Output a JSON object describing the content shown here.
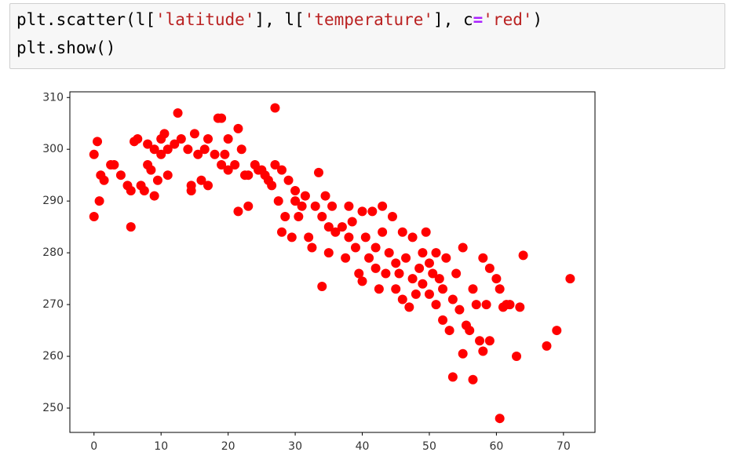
{
  "code": {
    "lines": [
      [
        "plt.scatter(l[",
        "'latitude'",
        "], l[",
        "'temperature'",
        "], c",
        "=",
        "'red'",
        ")"
      ],
      [
        "plt.show()"
      ]
    ]
  },
  "chart_data": {
    "type": "scatter",
    "color": "red",
    "x": [
      0,
      0,
      0.5,
      0.8,
      1,
      1.5,
      2.5,
      3,
      4,
      5,
      5.5,
      5.5,
      6,
      6.5,
      7,
      7.5,
      8,
      8,
      8.5,
      9,
      9,
      9.5,
      10,
      10,
      10.5,
      11,
      11,
      12,
      12.5,
      13,
      14,
      14.5,
      14.5,
      15,
      15.5,
      16,
      16.5,
      17,
      17,
      18,
      18.5,
      19,
      19,
      19.5,
      20,
      20,
      21,
      21.5,
      21.5,
      22,
      22.5,
      23,
      23,
      24,
      24.5,
      25,
      25.5,
      26,
      26.5,
      27,
      27,
      27.5,
      28,
      28,
      28.5,
      29,
      29.5,
      30,
      30,
      30.5,
      31,
      31.5,
      32,
      32.5,
      33,
      33.5,
      34,
      34,
      34.5,
      35,
      35,
      35.5,
      36,
      37,
      37.5,
      38,
      38,
      38.5,
      39,
      39.5,
      40,
      40,
      40.5,
      41,
      41.5,
      42,
      42,
      42.5,
      43,
      43,
      43.5,
      44,
      44.5,
      45,
      45,
      45.5,
      46,
      46,
      46.5,
      47,
      47.5,
      47.5,
      48,
      48.5,
      49,
      49,
      49.5,
      50,
      50,
      50.5,
      51,
      51,
      51.5,
      52,
      52,
      52.5,
      53,
      53.5,
      53.5,
      54,
      54.5,
      55,
      55,
      55.5,
      56,
      56.5,
      56.5,
      57,
      57.5,
      58,
      58,
      58.5,
      59,
      59,
      60,
      60.5,
      60.5,
      61,
      61.5,
      62,
      63,
      63.5,
      64,
      67.5,
      69,
      71
    ],
    "values": [
      287,
      299,
      301.5,
      290,
      295,
      294,
      297,
      297,
      295,
      293,
      292,
      285,
      301.5,
      302,
      293,
      292,
      301,
      297,
      296,
      291,
      300,
      294,
      302,
      299,
      303,
      295,
      300,
      301,
      307,
      302,
      300,
      293,
      292,
      303,
      299,
      294,
      300,
      293,
      302,
      299,
      306,
      306,
      297,
      299,
      302,
      296,
      297,
      304,
      288,
      300,
      295,
      289,
      295,
      297,
      296,
      296,
      295,
      294,
      293,
      308,
      297,
      290,
      284,
      296,
      287,
      294,
      283,
      292,
      290,
      287,
      289,
      291,
      283,
      281,
      289,
      295.5,
      273.5,
      287,
      291,
      285,
      280,
      289,
      284,
      285,
      279,
      283,
      289,
      286,
      281,
      276,
      288,
      274.5,
      283,
      279,
      288,
      281,
      277,
      273,
      289,
      284,
      276,
      280,
      287,
      273,
      278,
      276,
      284,
      271,
      279,
      269.5,
      275,
      283,
      272,
      277,
      280,
      274,
      284,
      272,
      278,
      276,
      270,
      280,
      275,
      267,
      273,
      279,
      265,
      271,
      256,
      276,
      269,
      260.5,
      281,
      266,
      265,
      255.5,
      273,
      270,
      263,
      261,
      279,
      270,
      263,
      277,
      275,
      248,
      273,
      269.5,
      270,
      270,
      260,
      269.5,
      279.5,
      262,
      265,
      275
    ],
    "xlim": [
      -3.6,
      74.7
    ],
    "ylim": [
      245.3,
      311.1
    ],
    "xticks": [
      0,
      10,
      20,
      30,
      40,
      50,
      60,
      70
    ],
    "yticks": [
      250,
      260,
      270,
      280,
      290,
      300,
      310
    ]
  }
}
